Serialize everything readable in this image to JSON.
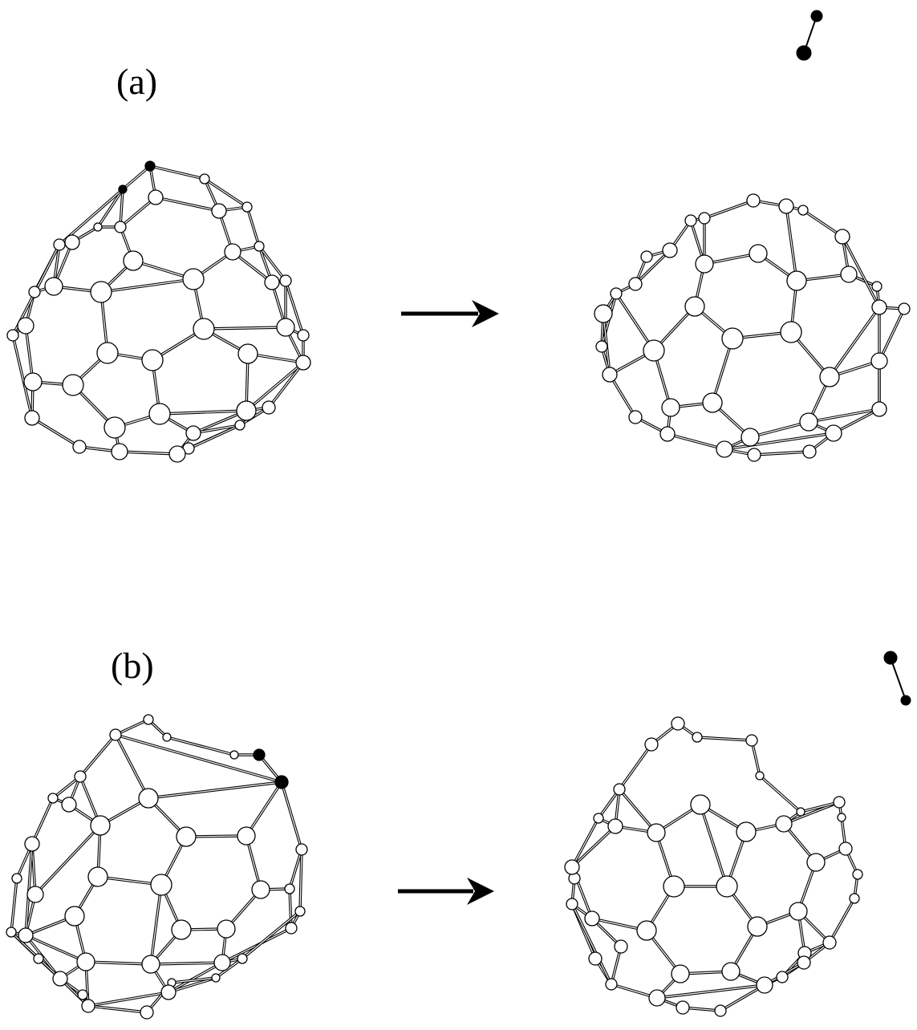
{
  "panels": [
    {
      "id": "a",
      "label": "(a)"
    },
    {
      "id": "b",
      "label": "(b)"
    }
  ],
  "colors": {
    "background": "#ffffff",
    "ink": "#000000",
    "carbon_atom_fill": "#ffffff",
    "emitted_dimer_fill": "#000000"
  },
  "arrow_icon": "right-arrow-icon"
}
